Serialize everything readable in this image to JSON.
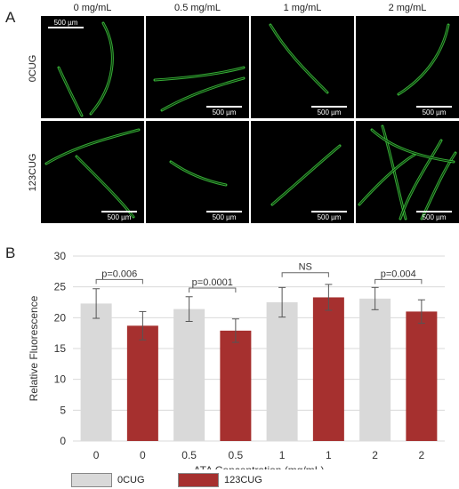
{
  "panel_a": {
    "letter": "A",
    "columns": [
      "0 mg/mL",
      "0.5 mg/mL",
      "1 mg/mL",
      "2 mg/mL"
    ],
    "rows": [
      "0CUG",
      "123CUG"
    ],
    "scale_label": "500 µm",
    "worm_color": "#3fc93f"
  },
  "panel_b": {
    "letter": "B"
  },
  "chart_data": {
    "type": "bar",
    "categories": [
      "0",
      "0",
      "0.5",
      "0.5",
      "1",
      "1",
      "2",
      "2"
    ],
    "values": [
      22.3,
      18.7,
      21.4,
      17.9,
      22.5,
      23.3,
      23.1,
      21.0
    ],
    "errors": [
      2.4,
      2.3,
      2.0,
      1.9,
      2.4,
      2.1,
      1.8,
      1.9
    ],
    "groups": [
      "0CUG",
      "123CUG",
      "0CUG",
      "123CUG",
      "0CUG",
      "123CUG",
      "0CUG",
      "123CUG"
    ],
    "colors": {
      "0CUG": "#d9d9d9",
      "123CUG": "#a6302f"
    },
    "xlabel": "ATA Concentration (mg/mL)",
    "ylabel": "Relative Fluorescence",
    "ylim": [
      0,
      30
    ],
    "yticks": [
      "0",
      "5",
      "10",
      "15",
      "20",
      "25",
      "30"
    ],
    "annotations": [
      {
        "pair": [
          0,
          1
        ],
        "text": "p=0.006",
        "y": 26.2
      },
      {
        "pair": [
          2,
          3
        ],
        "text": "p=0.0001",
        "y": 24.8
      },
      {
        "pair": [
          4,
          5
        ],
        "text": "NS",
        "y": 27.3
      },
      {
        "pair": [
          6,
          7
        ],
        "text": "p=0.004",
        "y": 26.2
      }
    ],
    "legend": [
      {
        "label": "0CUG",
        "color": "#d9d9d9"
      },
      {
        "label": "123CUG",
        "color": "#a6302f"
      }
    ]
  }
}
